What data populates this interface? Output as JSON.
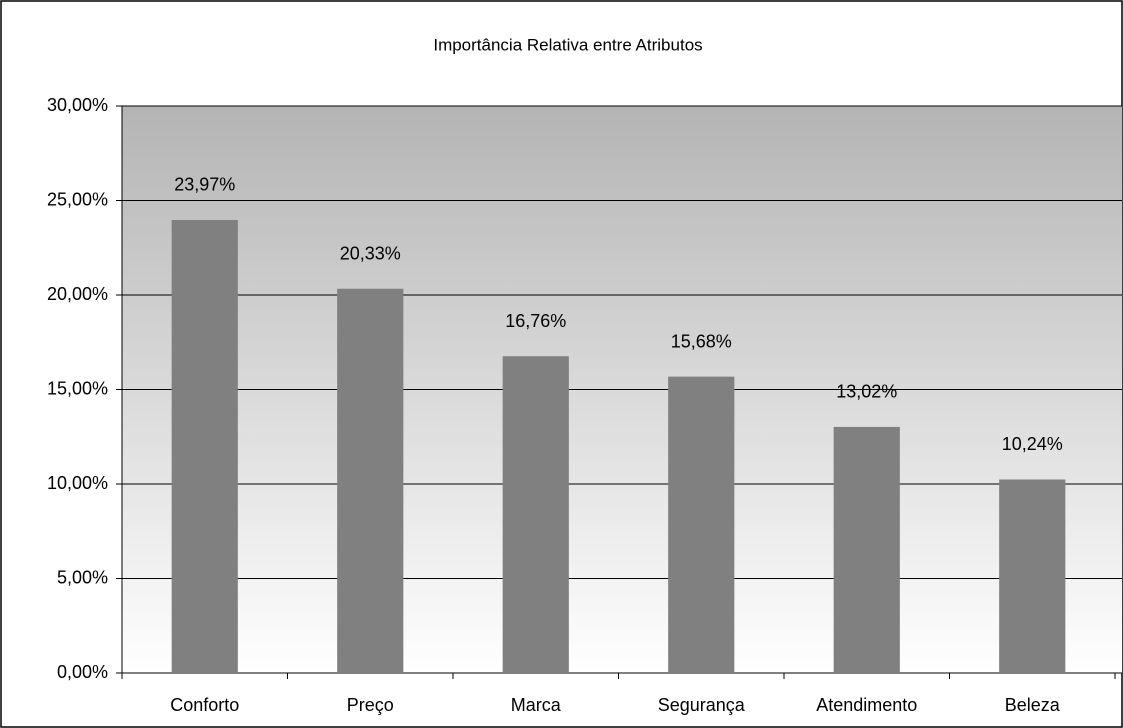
{
  "chart_data": {
    "type": "bar",
    "title": "Importância Relativa entre Atributos",
    "categories": [
      "Conforto",
      "Preço",
      "Marca",
      "Segurança",
      "Atendimento",
      "Beleza"
    ],
    "values": [
      23.97,
      20.33,
      16.76,
      15.68,
      13.02,
      10.24
    ],
    "value_labels": [
      "23,97%",
      "20,33%",
      "16,76%",
      "15,68%",
      "13,02%",
      "10,24%"
    ],
    "color": "#808080",
    "ylim": [
      0,
      30
    ],
    "yticks": [
      {
        "value": 0,
        "label": "0,00%"
      },
      {
        "value": 5,
        "label": "5,00%"
      },
      {
        "value": 10,
        "label": "10,00%"
      },
      {
        "value": 15,
        "label": "15,00%"
      },
      {
        "value": 20,
        "label": "20,00%"
      },
      {
        "value": 25,
        "label": "25,00%"
      },
      {
        "value": 30,
        "label": "30,00%"
      }
    ],
    "grid": true
  }
}
